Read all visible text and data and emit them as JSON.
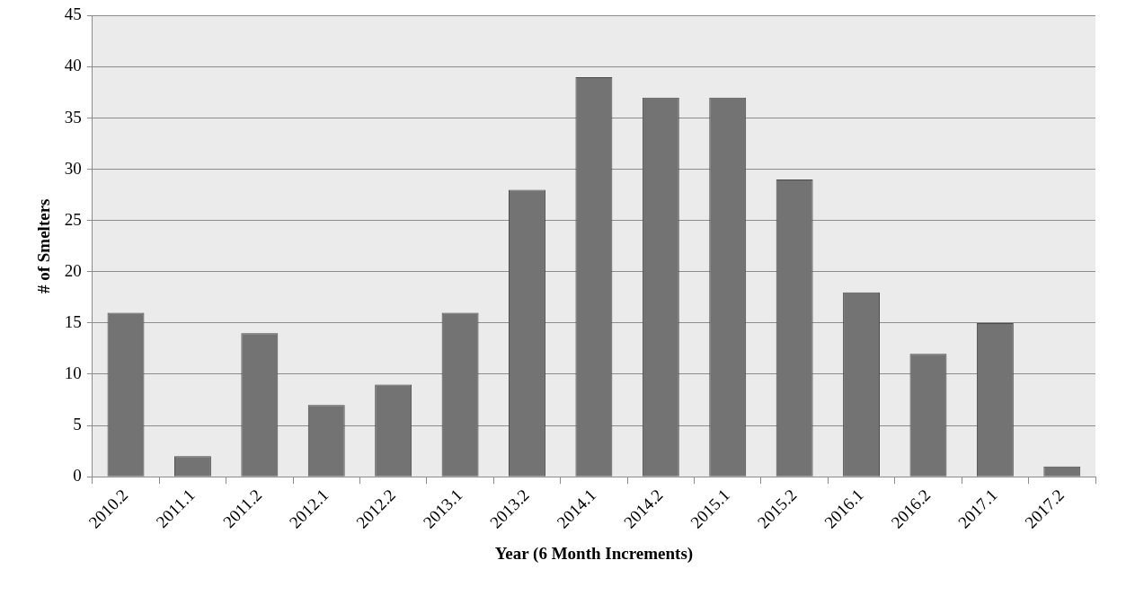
{
  "chart_data": {
    "type": "bar",
    "xlabel": "Year (6 Month Increments)",
    "ylabel": "# of Smelters",
    "categories": [
      "2010.2",
      "2011.1",
      "2011.2",
      "2012.1",
      "2012.2",
      "2013.1",
      "2013.2",
      "2014.1",
      "2014.2",
      "2015.1",
      "2015.2",
      "2016.1",
      "2016.2",
      "2017.1",
      "2017.2"
    ],
    "values": [
      16,
      2,
      14,
      7,
      9,
      16,
      28,
      39,
      37,
      37,
      29,
      18,
      12,
      15,
      1
    ],
    "color": "#737373",
    "ylim": [
      0,
      45
    ],
    "yticks": [
      0,
      5,
      10,
      15,
      20,
      25,
      30,
      35,
      40,
      45
    ],
    "grid": "y"
  }
}
